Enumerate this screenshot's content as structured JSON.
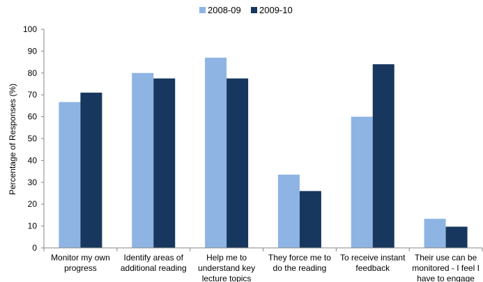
{
  "chart_data": {
    "type": "bar",
    "title": "",
    "xlabel": "",
    "ylabel": "Percentage of Responses (%)",
    "ylim": [
      0,
      100
    ],
    "yticks": [
      0,
      10,
      20,
      30,
      40,
      50,
      60,
      70,
      80,
      90,
      100
    ],
    "grid": false,
    "legend_position": "top-center",
    "categories": [
      [
        "Monitor my own",
        "progress"
      ],
      [
        "Identify areas of",
        "additional reading"
      ],
      [
        "Help me to",
        "understand key",
        "lecture topics"
      ],
      [
        "They force me to",
        "do the reading"
      ],
      [
        "To receive instant",
        "feedback"
      ],
      [
        "Their use can be",
        "monitored - I feel I",
        "have to engage"
      ]
    ],
    "series": [
      {
        "name": "2008-09",
        "color": "#8eb4e3",
        "values": [
          66.7,
          80,
          87,
          33.5,
          60,
          13.3
        ]
      },
      {
        "name": "2009-10",
        "color": "#17375e",
        "values": [
          71,
          77.5,
          77.5,
          26,
          84,
          9.7
        ]
      }
    ]
  }
}
